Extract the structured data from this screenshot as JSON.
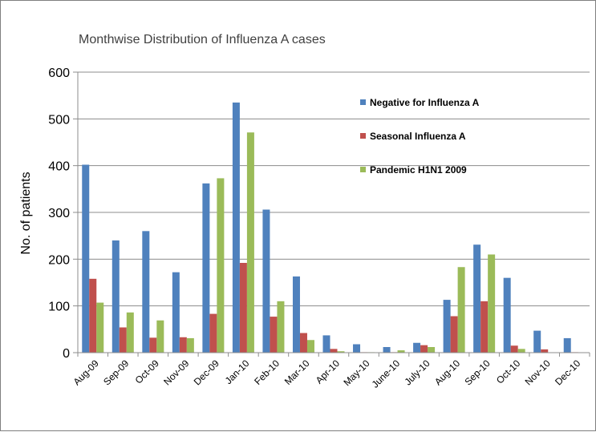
{
  "chart_data": {
    "type": "bar",
    "title": "Monthwise Distribution of Influenza A cases",
    "xlabel": "",
    "ylabel": "No. of patients",
    "ylim": [
      0,
      600
    ],
    "yticks": [
      "0",
      "100",
      "200",
      "300",
      "400",
      "500",
      "600"
    ],
    "grid": true,
    "legend_position": "top-right",
    "categories": [
      "Aug-09",
      "Sep-09",
      "Oct-09",
      "Nov-09",
      "Dec-09",
      "Jan-10",
      "Feb-10",
      "Mar-10",
      "Apr-10",
      "May-10",
      "June-10",
      "July-10",
      "Aug-10",
      "Sep-10",
      "Oct-10",
      "Nov-10",
      "Dec-10"
    ],
    "series": [
      {
        "name": "Negative for Influenza A",
        "color": "#4f81bd",
        "values": [
          402,
          240,
          260,
          172,
          362,
          535,
          306,
          163,
          37,
          18,
          12,
          21,
          113,
          231,
          160,
          47,
          31
        ]
      },
      {
        "name": "Seasonal Influenza A",
        "color": "#c0504d",
        "values": [
          158,
          54,
          32,
          33,
          83,
          192,
          77,
          42,
          8,
          1,
          1,
          16,
          78,
          110,
          15,
          7,
          1
        ]
      },
      {
        "name": "Pandemic H1N1 2009",
        "color": "#9bbb59",
        "values": [
          107,
          86,
          69,
          31,
          373,
          471,
          110,
          27,
          3,
          1,
          5,
          12,
          183,
          210,
          8,
          0,
          0
        ]
      }
    ]
  }
}
